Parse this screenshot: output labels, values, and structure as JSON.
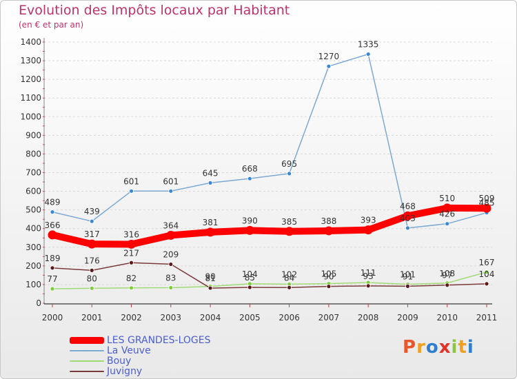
{
  "header": {
    "title": "Evolution des Impôts locaux par Habitant",
    "subtitle": "(en € et par an)"
  },
  "logo": {
    "text": "Proxiti",
    "colors": [
      "#e8562a",
      "#f0a020",
      "#2f7fd0",
      "#e0332a",
      "#8cc63f",
      "#f0a020",
      "#2f7fd0"
    ]
  },
  "chart_data": {
    "type": "line",
    "title": "Evolution des Impôts locaux par Habitant",
    "subtitle": "(en € et par an)",
    "xlabel": "",
    "ylabel": "",
    "ylim": [
      0,
      1400
    ],
    "ytick_step": 100,
    "yticks": [
      "0",
      "100",
      "200",
      "300",
      "400",
      "500",
      "600",
      "700",
      "800",
      "900",
      "1000",
      "1100",
      "1200",
      "1300",
      "1400"
    ],
    "categories": [
      "2000",
      "2001",
      "2002",
      "2003",
      "2004",
      "2005",
      "2006",
      "2007",
      "2008",
      "2009",
      "2010",
      "2011"
    ],
    "grid": true,
    "legend_position": "bottom-left",
    "series": [
      {
        "name": "LES GRANDES-LOGES",
        "color": "#ff0000",
        "values": [
          366,
          317,
          316,
          364,
          381,
          390,
          385,
          388,
          393,
          468,
          510,
          509
        ],
        "labels": [
          "366",
          "317",
          "316",
          "364",
          "381",
          "390",
          "385",
          "388",
          "393",
          "468",
          "510",
          "509"
        ]
      },
      {
        "name": "La Veuve",
        "color": "#7ba9d4",
        "marker": "#3a87d6",
        "values": [
          489,
          439,
          601,
          601,
          645,
          668,
          695,
          1270,
          1335,
          403,
          426,
          485
        ],
        "labels": [
          "489",
          "439",
          "601",
          "601",
          "645",
          "668",
          "695",
          "1270",
          "1335",
          "403",
          "426",
          "485"
        ]
      },
      {
        "name": "Bouy",
        "color": "#9fdb74",
        "marker": "#7ccc3c",
        "values": [
          77,
          80,
          82,
          83,
          90,
          104,
          102,
          105,
          111,
          101,
          108,
          167
        ],
        "labels": [
          "77",
          "80",
          "82",
          "83",
          "90",
          "104",
          "102",
          "105",
          "111",
          "101",
          "108",
          "167"
        ]
      },
      {
        "name": "Juvigny",
        "color": "#7a3a3a",
        "marker": "#5a1a1a",
        "values": [
          189,
          176,
          217,
          209,
          81,
          85,
          84,
          90,
          93,
          91,
          97,
          104
        ],
        "labels": [
          "189",
          "176",
          "217",
          "209",
          "81",
          "85",
          "84",
          "90",
          "93",
          "91",
          "97",
          "104"
        ]
      }
    ]
  }
}
